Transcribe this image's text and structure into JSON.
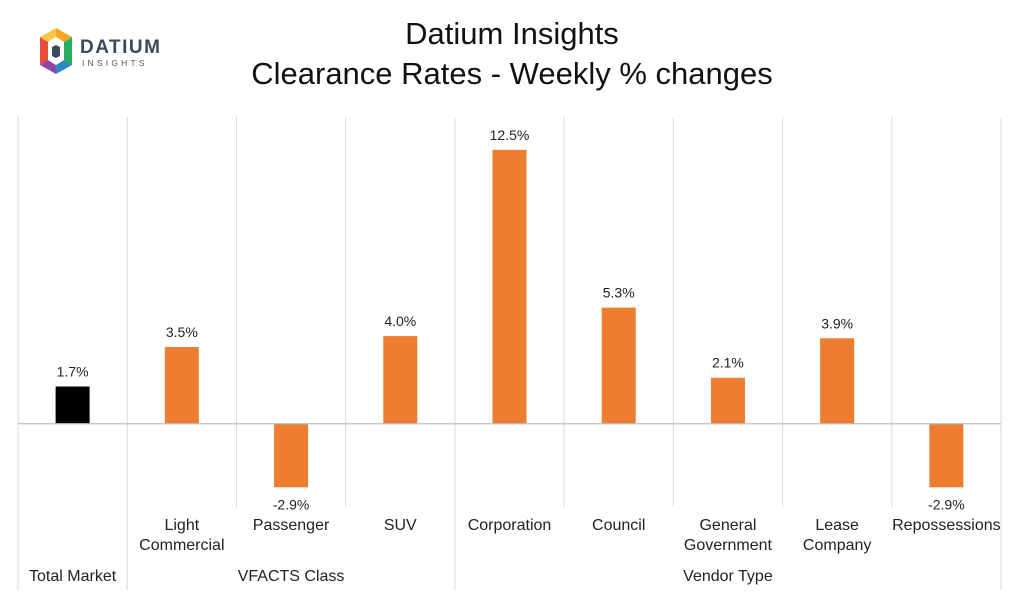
{
  "title_line1": "Datium Insights",
  "title_line2": "Clearance Rates - Weekly % changes",
  "logo": {
    "name": "DATIUM",
    "sub": "INSIGHTS"
  },
  "colors": {
    "total_bar": "#000000",
    "segment_bar": "#ED7D31",
    "grid": "#D9D9D9",
    "axis": "#BFBFBF",
    "text": "#222222"
  },
  "chart_data": {
    "type": "bar",
    "categories": [
      "Total Market",
      "Light Commercial",
      "Passenger",
      "SUV",
      "Corporation",
      "Council",
      "General Government",
      "Lease Company",
      "Repossessions"
    ],
    "category_lines": [
      [
        "Total Market"
      ],
      [
        "Light",
        "Commercial"
      ],
      [
        "Passenger"
      ],
      [
        "SUV"
      ],
      [
        "Corporation"
      ],
      [
        "Council"
      ],
      [
        "General",
        "Government"
      ],
      [
        "Lease",
        "Company"
      ],
      [
        "Repossessions"
      ]
    ],
    "groups": [
      {
        "label": "Total Market",
        "categories": [
          0
        ]
      },
      {
        "label": "VFACTS Class",
        "categories": [
          1,
          2,
          3
        ]
      },
      {
        "label": "Vendor Type",
        "categories": [
          4,
          5,
          6,
          7,
          8
        ]
      }
    ],
    "values": [
      1.7,
      3.5,
      -2.9,
      4.0,
      12.5,
      5.3,
      2.1,
      3.9,
      -2.9
    ],
    "data_labels": [
      "1.7%",
      "3.5%",
      "-2.9%",
      "4.0%",
      "12.5%",
      "5.3%",
      "2.1%",
      "3.9%",
      "-2.9%"
    ],
    "bar_colors": [
      "#000000",
      "#ED7D31",
      "#ED7D31",
      "#ED7D31",
      "#ED7D31",
      "#ED7D31",
      "#ED7D31",
      "#ED7D31",
      "#ED7D31"
    ],
    "ylim": [
      -3.8,
      14.0
    ],
    "unit": "%",
    "grid": true
  }
}
